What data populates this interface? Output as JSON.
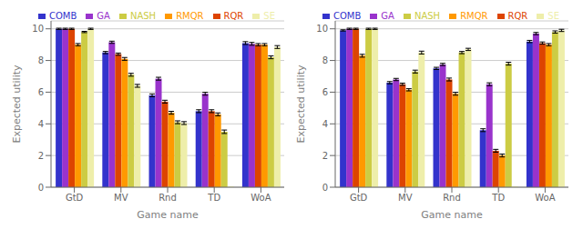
{
  "chart_data": [
    {
      "type": "bar",
      "xlabel": "Game name",
      "ylabel": "Expected utility",
      "categories": [
        "GtD",
        "MV",
        "Rnd",
        "TD",
        "WoA"
      ],
      "series": [
        {
          "name": "COMB",
          "color": "#3333cc",
          "values": [
            10.0,
            8.5,
            5.8,
            4.8,
            9.1
          ],
          "errors": [
            0.04,
            0.07,
            0.09,
            0.09,
            0.09
          ]
        },
        {
          "name": "GA",
          "color": "#9933cc",
          "values": [
            10.0,
            9.15,
            6.85,
            5.9,
            9.05
          ],
          "errors": [
            0.04,
            0.07,
            0.09,
            0.09,
            0.09
          ]
        },
        {
          "name": "RQR",
          "color": "#dd4400",
          "values": [
            10.0,
            8.4,
            5.4,
            4.8,
            9.0
          ],
          "errors": [
            0.04,
            0.07,
            0.09,
            0.09,
            0.07
          ]
        },
        {
          "name": "RMQR",
          "color": "#ff9900",
          "values": [
            9.0,
            8.1,
            4.7,
            4.6,
            9.0
          ],
          "errors": [
            0.07,
            0.09,
            0.09,
            0.09,
            0.07
          ]
        },
        {
          "name": "NASH",
          "color": "#cccc44",
          "values": [
            9.8,
            7.1,
            4.1,
            3.5,
            8.2
          ],
          "errors": [
            0.04,
            0.09,
            0.09,
            0.11,
            0.09
          ]
        },
        {
          "name": "SE",
          "color": "#eeeeaa",
          "values": [
            10.0,
            6.4,
            4.05,
            0.05,
            8.85
          ],
          "errors": [
            0.04,
            0.09,
            0.09,
            0.0,
            0.09
          ]
        }
      ],
      "ylim": [
        0,
        10.5
      ],
      "yticks": [
        0,
        2,
        4,
        6,
        8,
        10
      ],
      "grid": true,
      "legend": "upper right"
    },
    {
      "type": "bar",
      "xlabel": "Game name",
      "ylabel": "Expected utility",
      "categories": [
        "GtD",
        "MV",
        "Rnd",
        "TD",
        "WoA"
      ],
      "series": [
        {
          "name": "COMB",
          "color": "#3333cc",
          "values": [
            9.9,
            6.6,
            7.5,
            3.6,
            9.2
          ],
          "errors": [
            0.04,
            0.07,
            0.07,
            0.09,
            0.07
          ]
        },
        {
          "name": "GA",
          "color": "#9933cc",
          "values": [
            10.0,
            6.8,
            7.75,
            6.5,
            9.7
          ],
          "errors": [
            0.04,
            0.07,
            0.07,
            0.09,
            0.07
          ]
        },
        {
          "name": "RQR",
          "color": "#dd4400",
          "values": [
            10.0,
            6.5,
            6.8,
            2.3,
            9.1
          ],
          "errors": [
            0.04,
            0.07,
            0.09,
            0.09,
            0.07
          ]
        },
        {
          "name": "RMQR",
          "color": "#ff9900",
          "values": [
            8.3,
            6.15,
            5.9,
            2.0,
            9.0
          ],
          "errors": [
            0.09,
            0.07,
            0.09,
            0.09,
            0.07
          ]
        },
        {
          "name": "NASH",
          "color": "#cccc44",
          "values": [
            10.0,
            7.3,
            8.5,
            7.8,
            9.8
          ],
          "errors": [
            0.04,
            0.09,
            0.07,
            0.09,
            0.07
          ]
        },
        {
          "name": "SE",
          "color": "#eeeeaa",
          "values": [
            10.0,
            8.5,
            8.7,
            0.05,
            9.9
          ],
          "errors": [
            0.04,
            0.09,
            0.07,
            0.0,
            0.07
          ]
        }
      ],
      "ylim": [
        0,
        10.5
      ],
      "yticks": [
        0,
        2,
        4,
        6,
        8,
        10
      ],
      "grid": true,
      "legend": "upper right"
    }
  ]
}
